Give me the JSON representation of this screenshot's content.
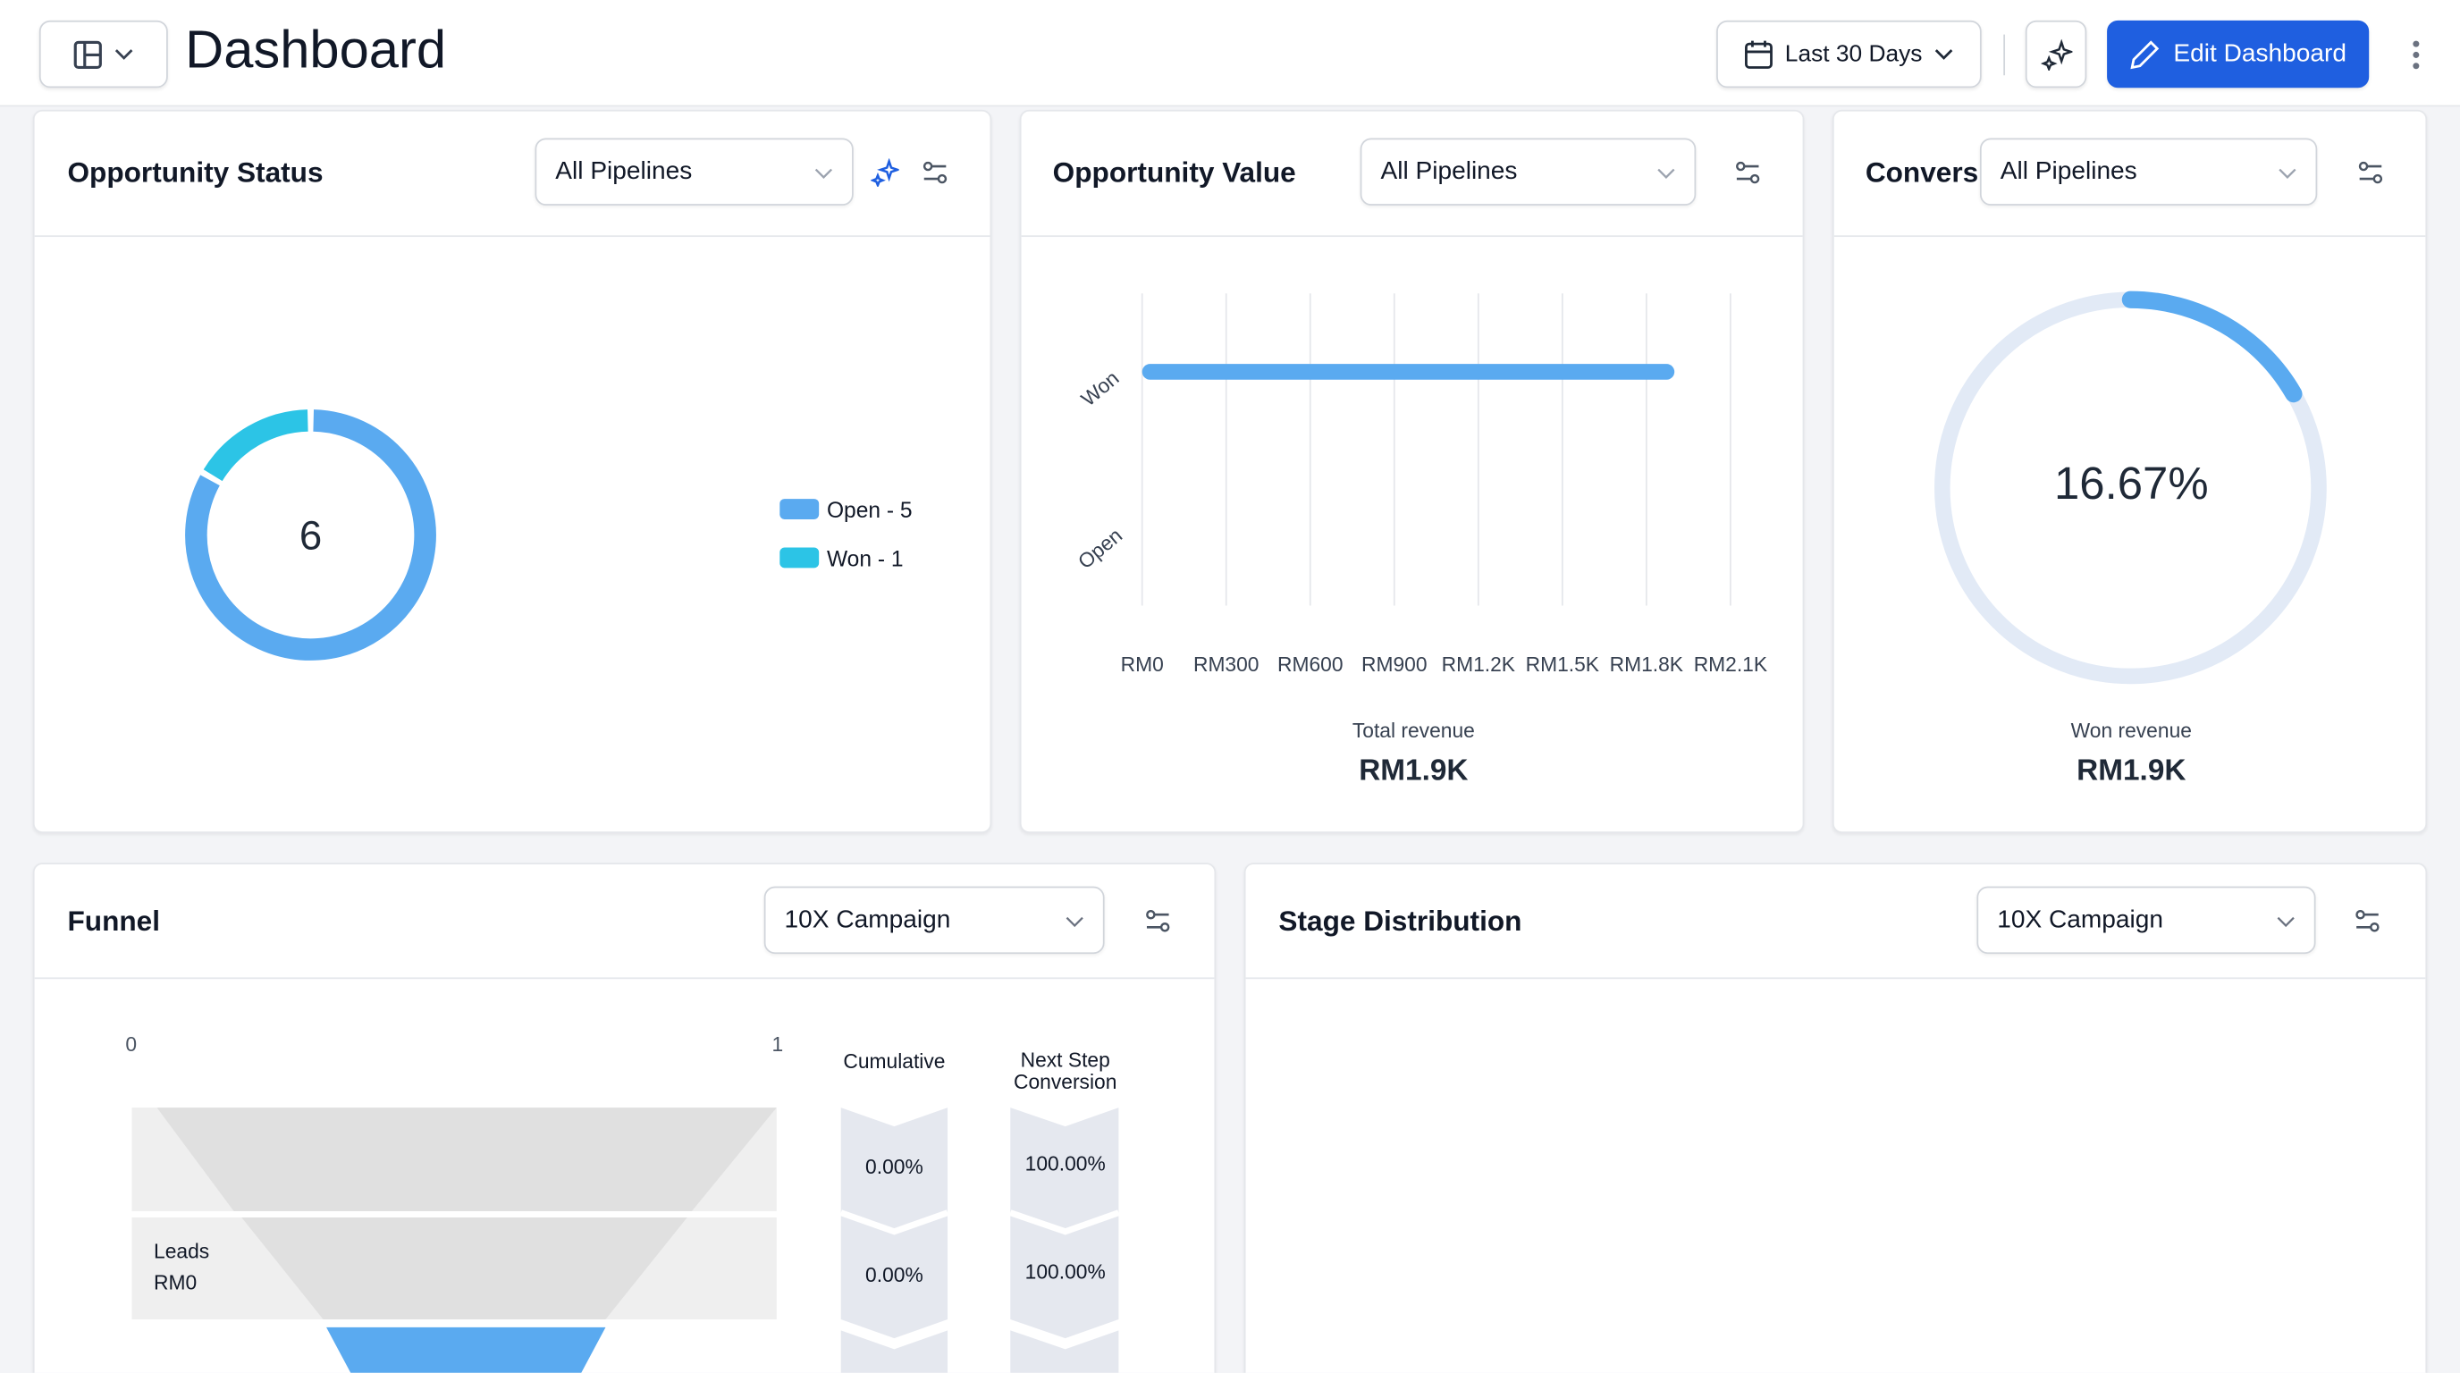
{
  "header": {
    "title": "Dashboard",
    "date_range": "Last 30 Days",
    "edit_label": "Edit Dashboard"
  },
  "colors": {
    "accent": "#1f5fe0",
    "open": "#5aaaf0",
    "won": "#2cc4e6",
    "track": "#e2eaf6"
  },
  "opportunity_status": {
    "title": "Opportunity Status",
    "filter": "All Pipelines",
    "total": "6",
    "legend": [
      {
        "label": "Open - 5",
        "value": 5
      },
      {
        "label": "Won - 1",
        "value": 1
      }
    ]
  },
  "opportunity_value": {
    "title": "Opportunity Value",
    "filter": "All Pipelines",
    "chart_data": {
      "type": "bar",
      "orientation": "horizontal",
      "categories": [
        "Won",
        "Open"
      ],
      "values": [
        1900,
        0
      ],
      "x_ticks": [
        "RM0",
        "RM300",
        "RM600",
        "RM900",
        "RM1.2K",
        "RM1.5K",
        "RM1.8K",
        "RM2.1K"
      ],
      "xlim": [
        0,
        2100
      ]
    },
    "total_label": "Total revenue",
    "total_value": "RM1.9K"
  },
  "conversion": {
    "title": "Convers",
    "filter": "All Pipelines",
    "percent": "16.67%",
    "fraction": 0.1667,
    "label": "Won revenue",
    "value": "RM1.9K"
  },
  "funnel": {
    "title": "Funnel",
    "filter": "10X Campaign",
    "axis_min": "0",
    "axis_max": "1",
    "col_cumulative": "Cumulative",
    "col_next_line1": "Next Step",
    "col_next_line2": "Conversion",
    "stage_name": "Leads",
    "stage_value": "RM0",
    "rows": [
      {
        "cumulative": "0.00%",
        "next": "100.00%"
      },
      {
        "cumulative": "0.00%",
        "next": "100.00%"
      }
    ]
  },
  "stage_distribution": {
    "title": "Stage Distribution",
    "filter": "10X Campaign"
  }
}
